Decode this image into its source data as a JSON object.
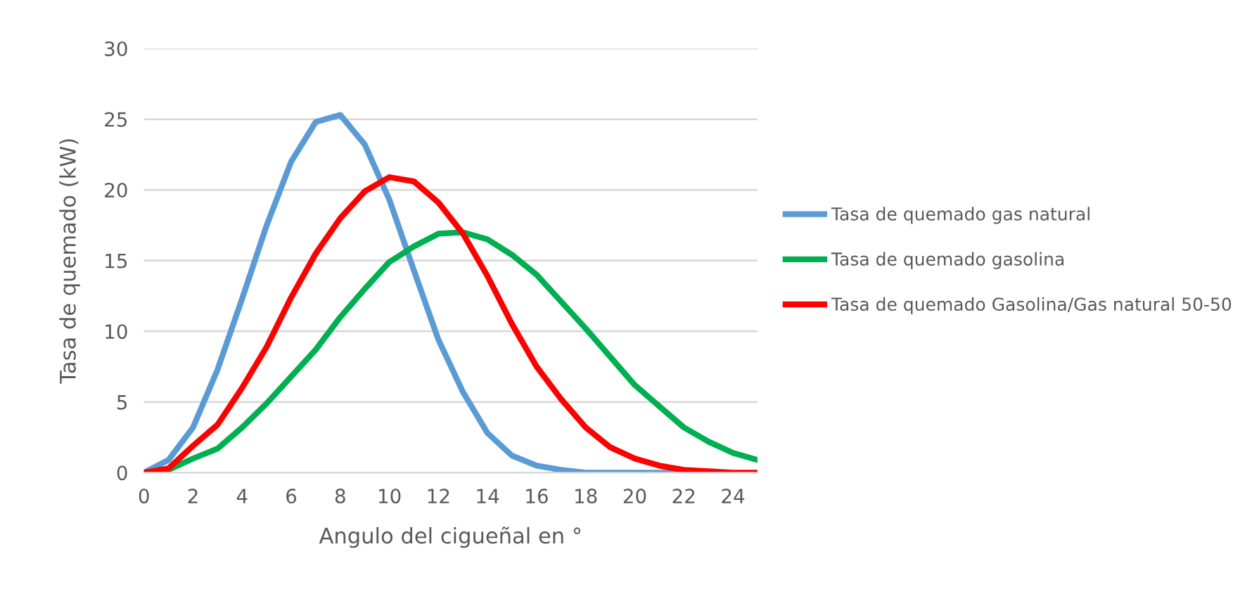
{
  "chart_data": {
    "type": "line",
    "xlabel": "Angulo del cigueñal en °",
    "ylabel": "Tasa de quemado (kW)",
    "x": [
      0,
      1,
      2,
      3,
      4,
      5,
      6,
      7,
      8,
      9,
      10,
      11,
      12,
      13,
      14,
      15,
      16,
      17,
      18,
      19,
      20,
      21,
      22,
      23,
      24,
      25
    ],
    "series": [
      {
        "name": "Tasa de quemado gas natural",
        "color": "#5b9bd5",
        "values": [
          0,
          0.9,
          3.2,
          7.3,
          12.3,
          17.5,
          22.0,
          24.8,
          25.3,
          23.2,
          19.3,
          14.3,
          9.4,
          5.7,
          2.8,
          1.2,
          0.5,
          0.2,
          0,
          0,
          0,
          0,
          0,
          0,
          null,
          null
        ]
      },
      {
        "name": "Tasa de quemado gasolina",
        "color": "#00b050",
        "values": [
          0,
          0.2,
          1.0,
          1.7,
          3.2,
          4.9,
          6.8,
          8.7,
          11.0,
          13.0,
          14.9,
          16.0,
          16.9,
          17.0,
          16.5,
          15.4,
          14.0,
          12.1,
          10.2,
          8.2,
          6.2,
          4.7,
          3.2,
          2.2,
          1.4,
          0.9
        ]
      },
      {
        "name": "Tasa de quemado Gasolina/Gas natural 50-50",
        "color": "#ff0000",
        "values": [
          0,
          0.3,
          1.9,
          3.4,
          6.0,
          8.9,
          12.4,
          15.5,
          18.0,
          19.9,
          20.9,
          20.6,
          19.1,
          16.9,
          13.9,
          10.5,
          7.5,
          5.2,
          3.2,
          1.8,
          1.0,
          0.5,
          0.2,
          0.1,
          0,
          0
        ]
      }
    ],
    "xlim": [
      0,
      25
    ],
    "xticks": [
      0,
      2,
      4,
      6,
      8,
      10,
      12,
      14,
      16,
      18,
      20,
      22,
      24
    ],
    "ylim": [
      0,
      30
    ],
    "yticks": [
      0,
      5,
      10,
      15,
      20,
      25,
      30
    ],
    "grid": "y",
    "legend": "right",
    "marker": "none",
    "line_style": "solid"
  }
}
